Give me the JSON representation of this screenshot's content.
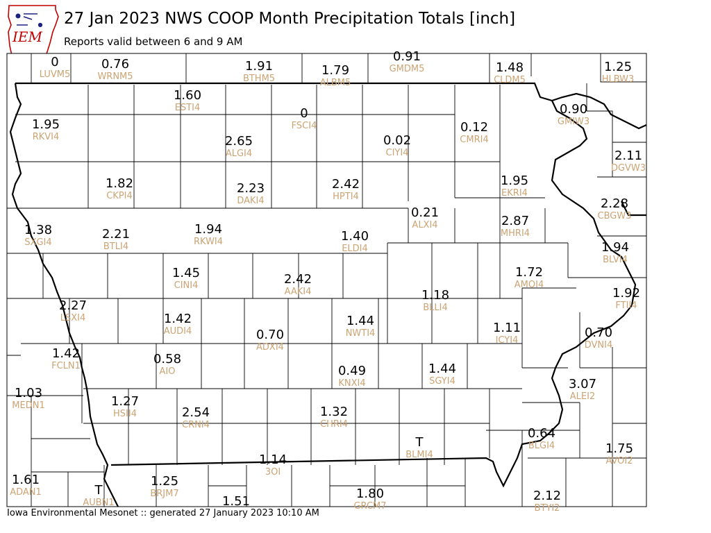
{
  "header": {
    "title": "27 Jan 2023 NWS COOP Month Precipitation Totals [inch]",
    "subtitle": "Reports valid between 6 and 9 AM"
  },
  "logo": {
    "text": "IEM"
  },
  "footer": {
    "text": "Iowa Environmental Mesonet :: generated 27 January 2023 10:10 AM"
  },
  "colors": {
    "value_text": "#000000",
    "station_id": "#cca373",
    "logo_red": "#c00000",
    "logo_blue": "#1a237e"
  },
  "stations": [
    {
      "id": "LUVM5",
      "value": "0"
    },
    {
      "id": "WRNM5",
      "value": "0.76"
    },
    {
      "id": "BTHM5",
      "value": "1.91"
    },
    {
      "id": "ALBM5",
      "value": "1.79"
    },
    {
      "id": "GMDM5",
      "value": "0.91"
    },
    {
      "id": "CLDM5",
      "value": "1.48"
    },
    {
      "id": "HLBW3",
      "value": "1.25"
    },
    {
      "id": "ESTI4",
      "value": "1.60"
    },
    {
      "id": "FSCI4",
      "value": "0"
    },
    {
      "id": "GMIW3",
      "value": "0.90"
    },
    {
      "id": "RKVI4",
      "value": "1.95"
    },
    {
      "id": "ALGI4",
      "value": "2.65"
    },
    {
      "id": "CIYI4",
      "value": "0.02"
    },
    {
      "id": "CMRI4",
      "value": "0.12"
    },
    {
      "id": "DGVW3",
      "value": "2.11"
    },
    {
      "id": "CKPI4",
      "value": "1.82"
    },
    {
      "id": "DAKI4",
      "value": "2.23"
    },
    {
      "id": "HPTI4",
      "value": "2.42"
    },
    {
      "id": "EKRI4",
      "value": "1.95"
    },
    {
      "id": "CBGW3",
      "value": "2.28"
    },
    {
      "id": "SXGI4",
      "value": "1.38"
    },
    {
      "id": "BTLI4",
      "value": "2.21"
    },
    {
      "id": "RKWI4",
      "value": "1.94"
    },
    {
      "id": "ALXI4",
      "value": "0.21"
    },
    {
      "id": "MHRI4",
      "value": "2.87"
    },
    {
      "id": "ELDI4",
      "value": "1.40"
    },
    {
      "id": "BLVI4",
      "value": "1.94"
    },
    {
      "id": "CINI4",
      "value": "1.45"
    },
    {
      "id": "AAKI4",
      "value": "2.42"
    },
    {
      "id": "AMOI4",
      "value": "1.72"
    },
    {
      "id": "BLLI4",
      "value": "1.18"
    },
    {
      "id": "FTII4",
      "value": "1.92"
    },
    {
      "id": "LSXI4",
      "value": "2.27"
    },
    {
      "id": "AUDI4",
      "value": "1.42"
    },
    {
      "id": "NWTI4",
      "value": "1.44"
    },
    {
      "id": "ICYI4",
      "value": "1.11"
    },
    {
      "id": "ADXI4",
      "value": "0.70"
    },
    {
      "id": "DVNI4",
      "value": "0.70"
    },
    {
      "id": "FCLN1",
      "value": "1.42"
    },
    {
      "id": "AIO",
      "value": "0.58"
    },
    {
      "id": "KNXI4",
      "value": "0.49"
    },
    {
      "id": "SGYI4",
      "value": "1.44"
    },
    {
      "id": "ALEI2",
      "value": "3.07"
    },
    {
      "id": "MEDN1",
      "value": "1.03"
    },
    {
      "id": "HSII4",
      "value": "1.27"
    },
    {
      "id": "CRNI4",
      "value": "2.54"
    },
    {
      "id": "CHRI4",
      "value": "1.32"
    },
    {
      "id": "BLMI4",
      "value": "T"
    },
    {
      "id": "BLGI4",
      "value": "0.64"
    },
    {
      "id": "AVOI2",
      "value": "1.75"
    },
    {
      "id": "3OI",
      "value": "1.14"
    },
    {
      "id": "ADAN1",
      "value": "1.61"
    },
    {
      "id": "AUBN1",
      "value": "T"
    },
    {
      "id": "BRJM7",
      "value": "1.25"
    },
    {
      "id": "GRCM7",
      "value": "1.80"
    },
    {
      "id": "BTYI2",
      "value": "2.12"
    },
    {
      "id": "",
      "value": "1.51"
    }
  ]
}
